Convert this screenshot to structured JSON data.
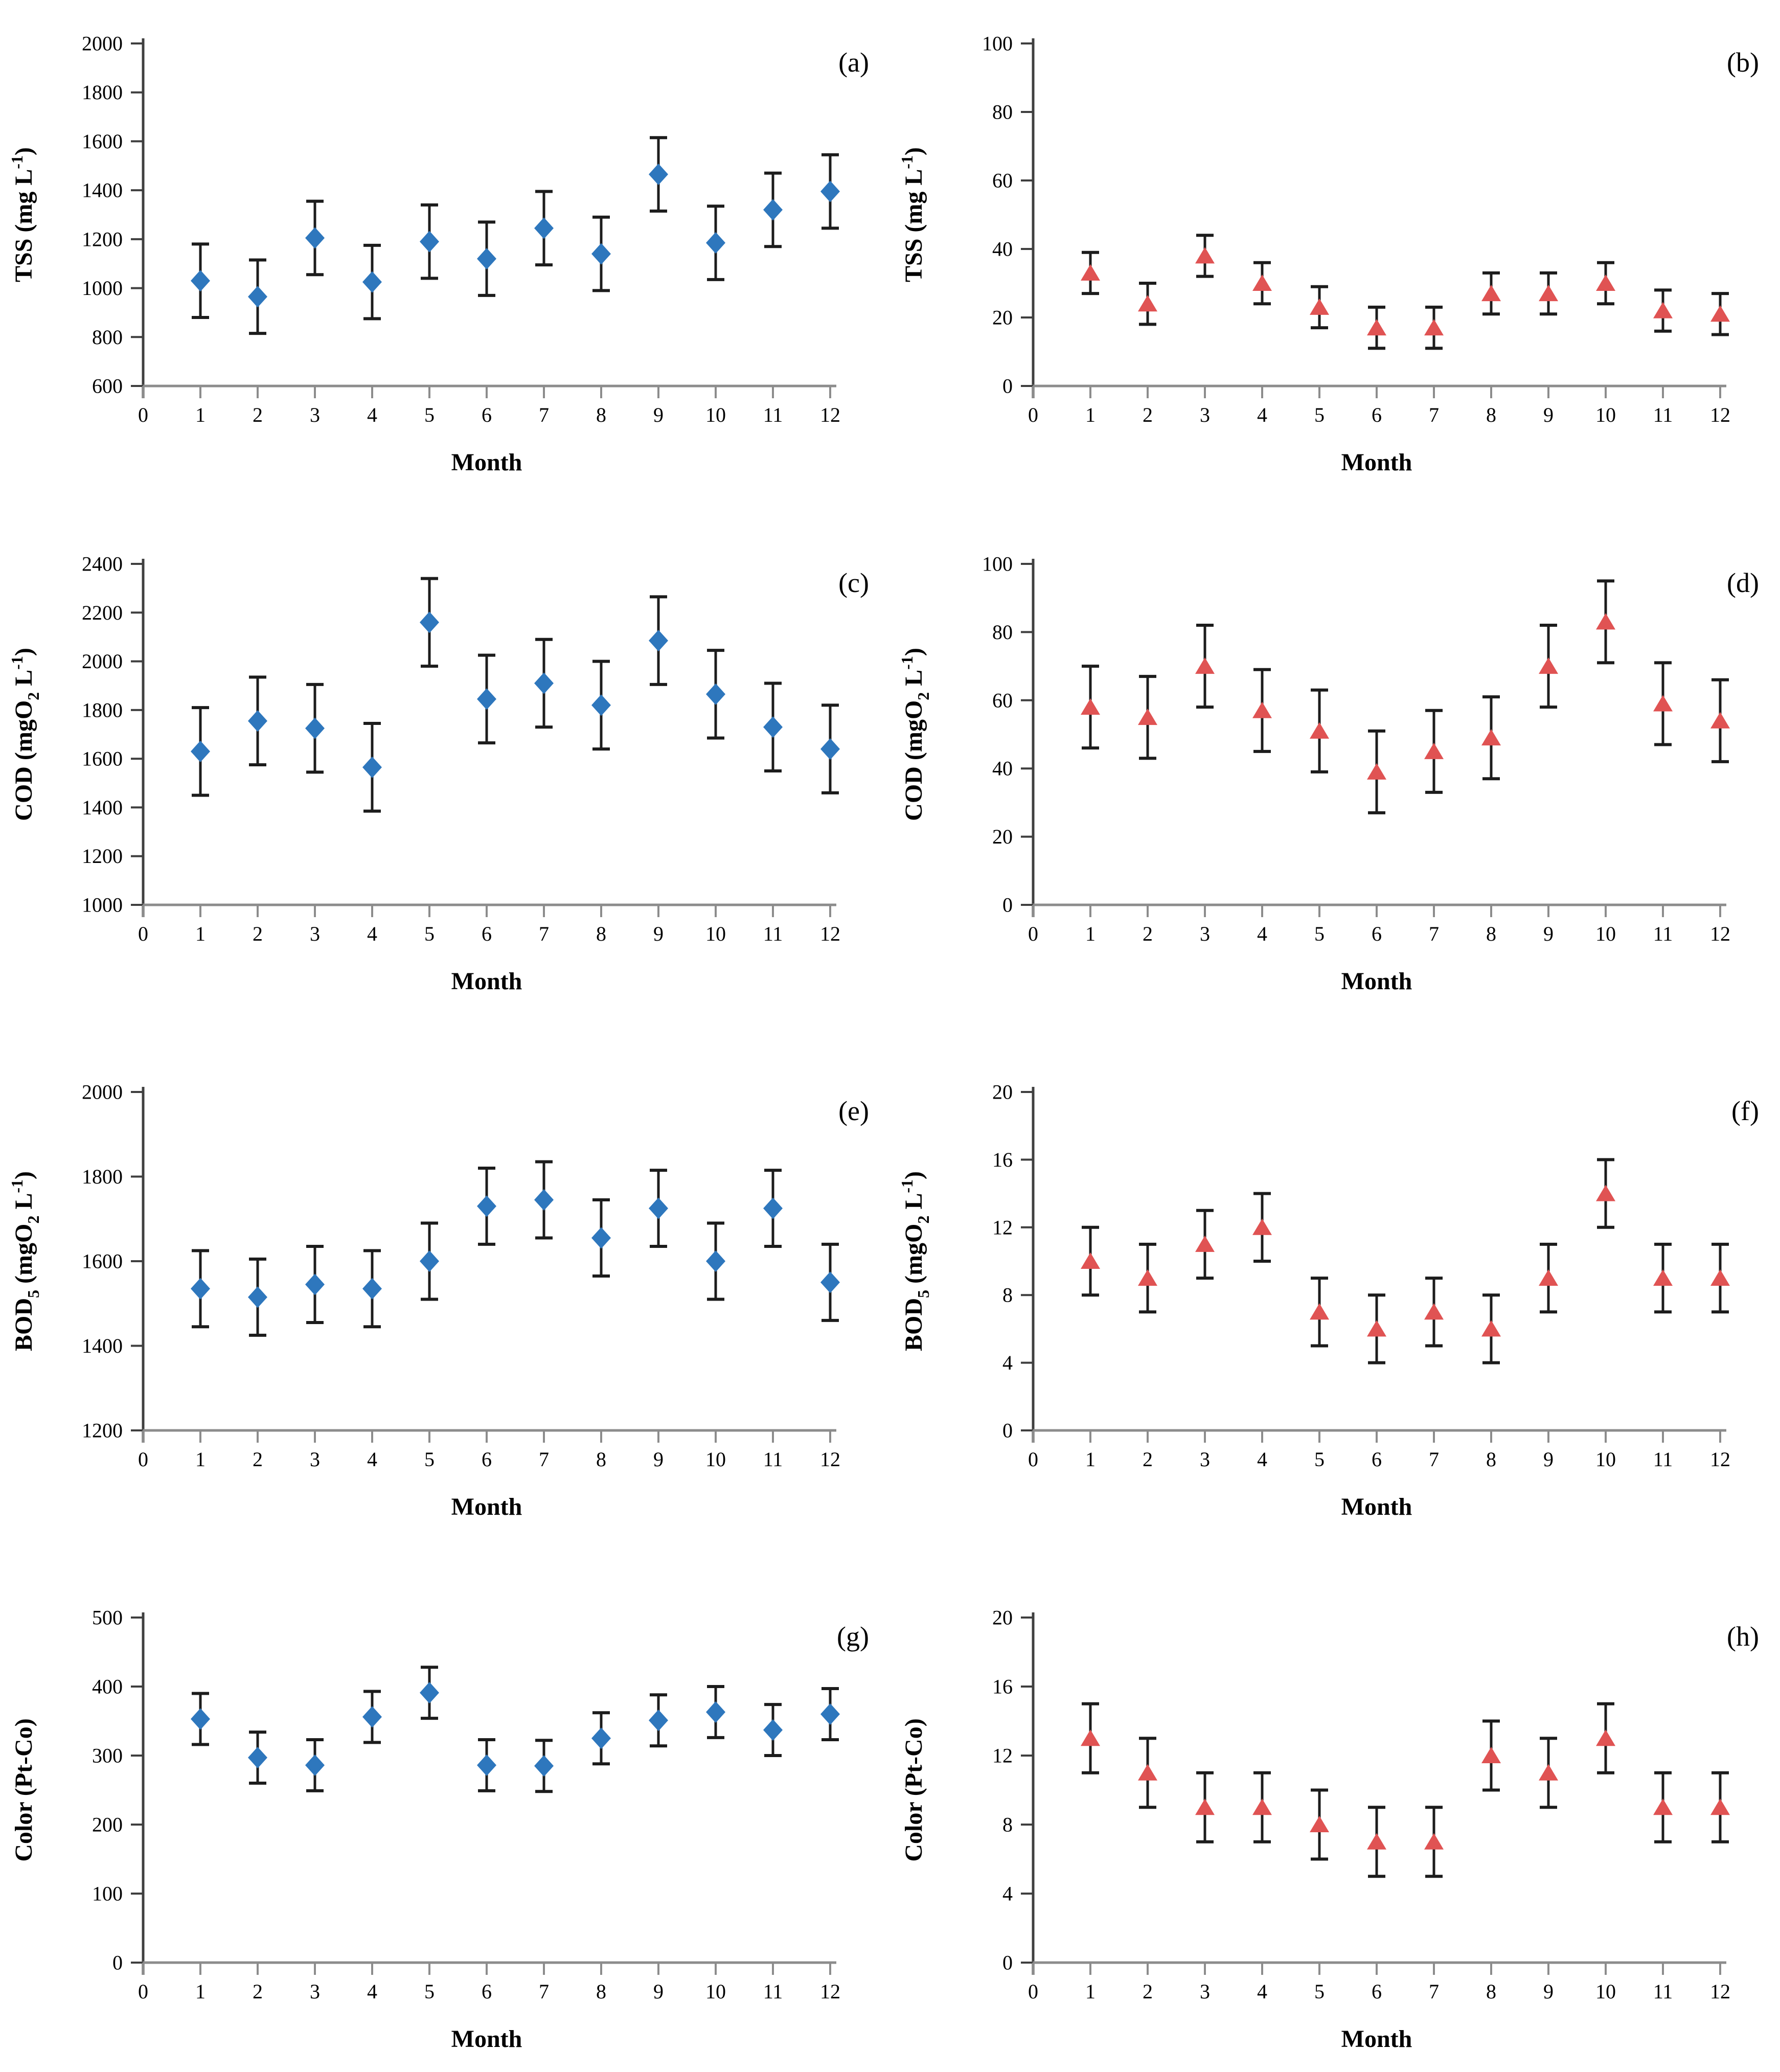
{
  "figure": {
    "xlabel": "Month",
    "xlim": [
      0,
      12
    ],
    "xticks": [
      0,
      1,
      2,
      3,
      4,
      5,
      6,
      7,
      8,
      9,
      10,
      11,
      12
    ],
    "x_months": [
      1,
      2,
      3,
      4,
      5,
      6,
      7,
      8,
      9,
      10,
      11,
      12
    ],
    "influent_marker_color": "#2e77bd",
    "effluent_marker_color": "#e05353",
    "error_bar_color": "#1c1c1c",
    "y_axis_color": "#3f3f3f",
    "x_axis_color": "#8c8c8c",
    "grid": "off",
    "legend": "none"
  },
  "chart_data": [
    {
      "id": "a",
      "panel_label": "(a)",
      "type": "scatter",
      "marker": "diamond",
      "marker_color": "#2e77bd",
      "ylabel_text": "TSS (mg L⁻¹)",
      "ylabel_parts": [
        {
          "t": "TSS (mg L"
        },
        {
          "t": "-1",
          "style": "sup"
        },
        {
          "t": ")"
        }
      ],
      "xlabel": "Month",
      "ylim": [
        600,
        2000
      ],
      "yticks": [
        600,
        800,
        1000,
        1200,
        1400,
        1600,
        1800,
        2000
      ],
      "x": [
        1,
        2,
        3,
        4,
        5,
        6,
        7,
        8,
        9,
        10,
        11,
        12
      ],
      "values": [
        1030,
        965,
        1205,
        1025,
        1190,
        1120,
        1245,
        1140,
        1465,
        1185,
        1320,
        1395
      ],
      "errors": [
        150,
        150,
        150,
        150,
        150,
        150,
        150,
        150,
        150,
        150,
        150,
        150
      ]
    },
    {
      "id": "b",
      "panel_label": "(b)",
      "type": "scatter",
      "marker": "triangle",
      "marker_color": "#e05353",
      "ylabel_text": "TSS (mg L⁻¹)",
      "ylabel_parts": [
        {
          "t": "TSS (mg L"
        },
        {
          "t": "-1",
          "style": "sup"
        },
        {
          "t": ")"
        }
      ],
      "xlabel": "Month",
      "ylim": [
        0,
        100
      ],
      "yticks": [
        0,
        20,
        40,
        60,
        80,
        100
      ],
      "x": [
        1,
        2,
        3,
        4,
        5,
        6,
        7,
        8,
        9,
        10,
        11,
        12
      ],
      "values": [
        33,
        24,
        38,
        30,
        23,
        17,
        17,
        27,
        27,
        30,
        22,
        21
      ],
      "errors": [
        6,
        6,
        6,
        6,
        6,
        6,
        6,
        6,
        6,
        6,
        6,
        6
      ]
    },
    {
      "id": "c",
      "panel_label": "(c)",
      "type": "scatter",
      "marker": "diamond",
      "marker_color": "#2e77bd",
      "ylabel_text": "COD (mgO₂ L⁻¹)",
      "ylabel_parts": [
        {
          "t": "COD (mgO"
        },
        {
          "t": "2",
          "style": "sub"
        },
        {
          "t": " L"
        },
        {
          "t": "-1",
          "style": "sup"
        },
        {
          "t": ")"
        }
      ],
      "xlabel": "Month",
      "ylim": [
        1000,
        2400
      ],
      "yticks": [
        1000,
        1200,
        1400,
        1600,
        1800,
        2000,
        2200,
        2400
      ],
      "x": [
        1,
        2,
        3,
        4,
        5,
        6,
        7,
        8,
        9,
        10,
        11,
        12
      ],
      "values": [
        1630,
        1755,
        1725,
        1565,
        2160,
        1845,
        1910,
        1820,
        2085,
        1865,
        1730,
        1640
      ],
      "errors": [
        180,
        180,
        180,
        180,
        180,
        180,
        180,
        180,
        180,
        180,
        180,
        180
      ]
    },
    {
      "id": "d",
      "panel_label": "(d)",
      "type": "scatter",
      "marker": "triangle",
      "marker_color": "#e05353",
      "ylabel_text": "COD (mgO₂ L⁻¹)",
      "ylabel_parts": [
        {
          "t": "COD (mgO"
        },
        {
          "t": "2",
          "style": "sub"
        },
        {
          "t": " L"
        },
        {
          "t": "-1",
          "style": "sup"
        },
        {
          "t": ")"
        }
      ],
      "xlabel": "Month",
      "ylim": [
        0,
        100
      ],
      "yticks": [
        0,
        20,
        40,
        60,
        80,
        100
      ],
      "x": [
        1,
        2,
        3,
        4,
        5,
        6,
        7,
        8,
        9,
        10,
        11,
        12
      ],
      "values": [
        58,
        55,
        70,
        57,
        51,
        39,
        45,
        49,
        70,
        83,
        59,
        54
      ],
      "errors": [
        12,
        12,
        12,
        12,
        12,
        12,
        12,
        12,
        12,
        12,
        12,
        12
      ]
    },
    {
      "id": "e",
      "panel_label": "(e)",
      "type": "scatter",
      "marker": "diamond",
      "marker_color": "#2e77bd",
      "ylabel_text": "BOD₅ (mgO₂ L⁻¹)",
      "ylabel_parts": [
        {
          "t": "BOD"
        },
        {
          "t": "5",
          "style": "sub"
        },
        {
          "t": " (mgO"
        },
        {
          "t": "2",
          "style": "sub"
        },
        {
          "t": " L"
        },
        {
          "t": "-1",
          "style": "sup"
        },
        {
          "t": ")"
        }
      ],
      "xlabel": "Month",
      "ylim": [
        1200,
        2000
      ],
      "yticks": [
        1200,
        1400,
        1600,
        1800,
        2000
      ],
      "x": [
        1,
        2,
        3,
        4,
        5,
        6,
        7,
        8,
        9,
        10,
        11,
        12
      ],
      "values": [
        1535,
        1515,
        1545,
        1535,
        1600,
        1730,
        1745,
        1655,
        1725,
        1600,
        1725,
        1550
      ],
      "errors": [
        90,
        90,
        90,
        90,
        90,
        90,
        90,
        90,
        90,
        90,
        90,
        90
      ]
    },
    {
      "id": "f",
      "panel_label": "(f)",
      "type": "scatter",
      "marker": "triangle",
      "marker_color": "#e05353",
      "ylabel_text": "BOD₅ (mgO₂ L⁻¹)",
      "ylabel_parts": [
        {
          "t": "BOD"
        },
        {
          "t": "5",
          "style": "sub"
        },
        {
          "t": " (mgO"
        },
        {
          "t": "2",
          "style": "sub"
        },
        {
          "t": " L"
        },
        {
          "t": "-1",
          "style": "sup"
        },
        {
          "t": ")"
        }
      ],
      "xlabel": "Month",
      "ylim": [
        0,
        20
      ],
      "yticks": [
        0,
        4,
        8,
        12,
        16,
        20
      ],
      "x": [
        1,
        2,
        3,
        4,
        5,
        6,
        7,
        8,
        9,
        10,
        11,
        12
      ],
      "values": [
        10,
        9,
        11,
        12,
        7,
        6,
        7,
        6,
        9,
        14,
        9,
        9
      ],
      "errors": [
        2,
        2,
        2,
        2,
        2,
        2,
        2,
        2,
        2,
        2,
        2,
        2
      ]
    },
    {
      "id": "g",
      "panel_label": "(g)",
      "type": "scatter",
      "marker": "diamond",
      "marker_color": "#2e77bd",
      "ylabel_text": "Color (Pt-Co)",
      "ylabel_parts": [
        {
          "t": "Color (Pt-Co)"
        }
      ],
      "xlabel": "Month",
      "ylim": [
        0,
        500
      ],
      "yticks": [
        0,
        100,
        200,
        300,
        400,
        500
      ],
      "x": [
        1,
        2,
        3,
        4,
        5,
        6,
        7,
        8,
        9,
        10,
        11,
        12
      ],
      "values": [
        353,
        297,
        286,
        356,
        391,
        286,
        285,
        325,
        351,
        363,
        337,
        360
      ],
      "errors": [
        37,
        37,
        37,
        37,
        37,
        37,
        37,
        37,
        37,
        37,
        37,
        37
      ]
    },
    {
      "id": "h",
      "panel_label": "(h)",
      "type": "scatter",
      "marker": "triangle",
      "marker_color": "#e05353",
      "ylabel_text": "Color (Pt-Co)",
      "ylabel_parts": [
        {
          "t": "Color (Pt-Co)"
        }
      ],
      "xlabel": "Month",
      "ylim": [
        0,
        20
      ],
      "yticks": [
        0,
        4,
        8,
        12,
        16,
        20
      ],
      "x": [
        1,
        2,
        3,
        4,
        5,
        6,
        7,
        8,
        9,
        10,
        11,
        12
      ],
      "values": [
        13,
        11,
        9,
        9,
        8,
        7,
        7,
        12,
        11,
        13,
        9,
        9
      ],
      "errors": [
        2,
        2,
        2,
        2,
        2,
        2,
        2,
        2,
        2,
        2,
        2,
        2
      ]
    }
  ]
}
